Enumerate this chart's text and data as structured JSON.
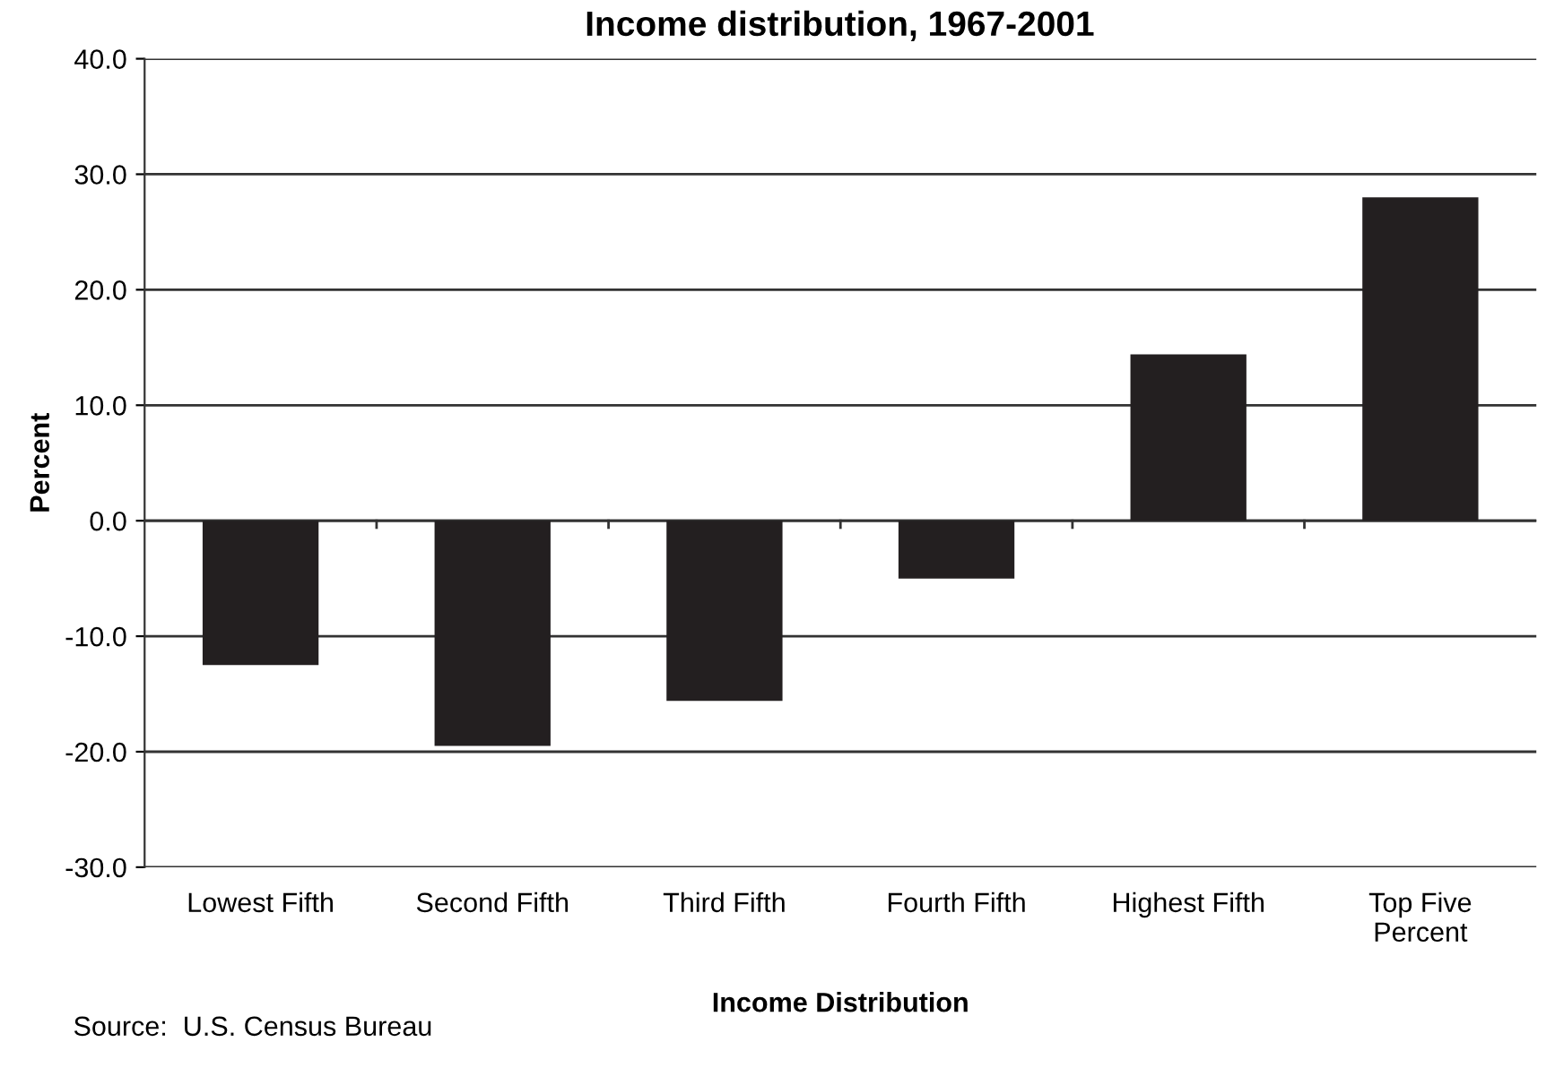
{
  "chart_data": {
    "type": "bar",
    "title": "Income distribution, 1967-2001",
    "xlabel": "Income Distribution",
    "ylabel": "Percent",
    "categories": [
      "Lowest Fifth",
      "Second Fifth",
      "Third Fifth",
      "Fourth Fifth",
      "Highest Fifth",
      "Top Five\nPercent"
    ],
    "values": [
      -12.5,
      -19.5,
      -15.6,
      -5.0,
      14.4,
      28.0
    ],
    "color": "#231f20",
    "ylim": [
      -30,
      40
    ],
    "yticks": [
      {
        "value": -30,
        "label": "-30.0"
      },
      {
        "value": -20,
        "label": "-20.0"
      },
      {
        "value": -10,
        "label": "-10.0"
      },
      {
        "value": 0,
        "label": "0.0"
      },
      {
        "value": 10,
        "label": "10.0"
      },
      {
        "value": 20,
        "label": "20.0"
      },
      {
        "value": 30,
        "label": "30.0"
      },
      {
        "value": 40,
        "label": "40.0"
      }
    ],
    "grid": "y",
    "annotations": [
      "Source:  U.S. Census Bureau"
    ]
  }
}
